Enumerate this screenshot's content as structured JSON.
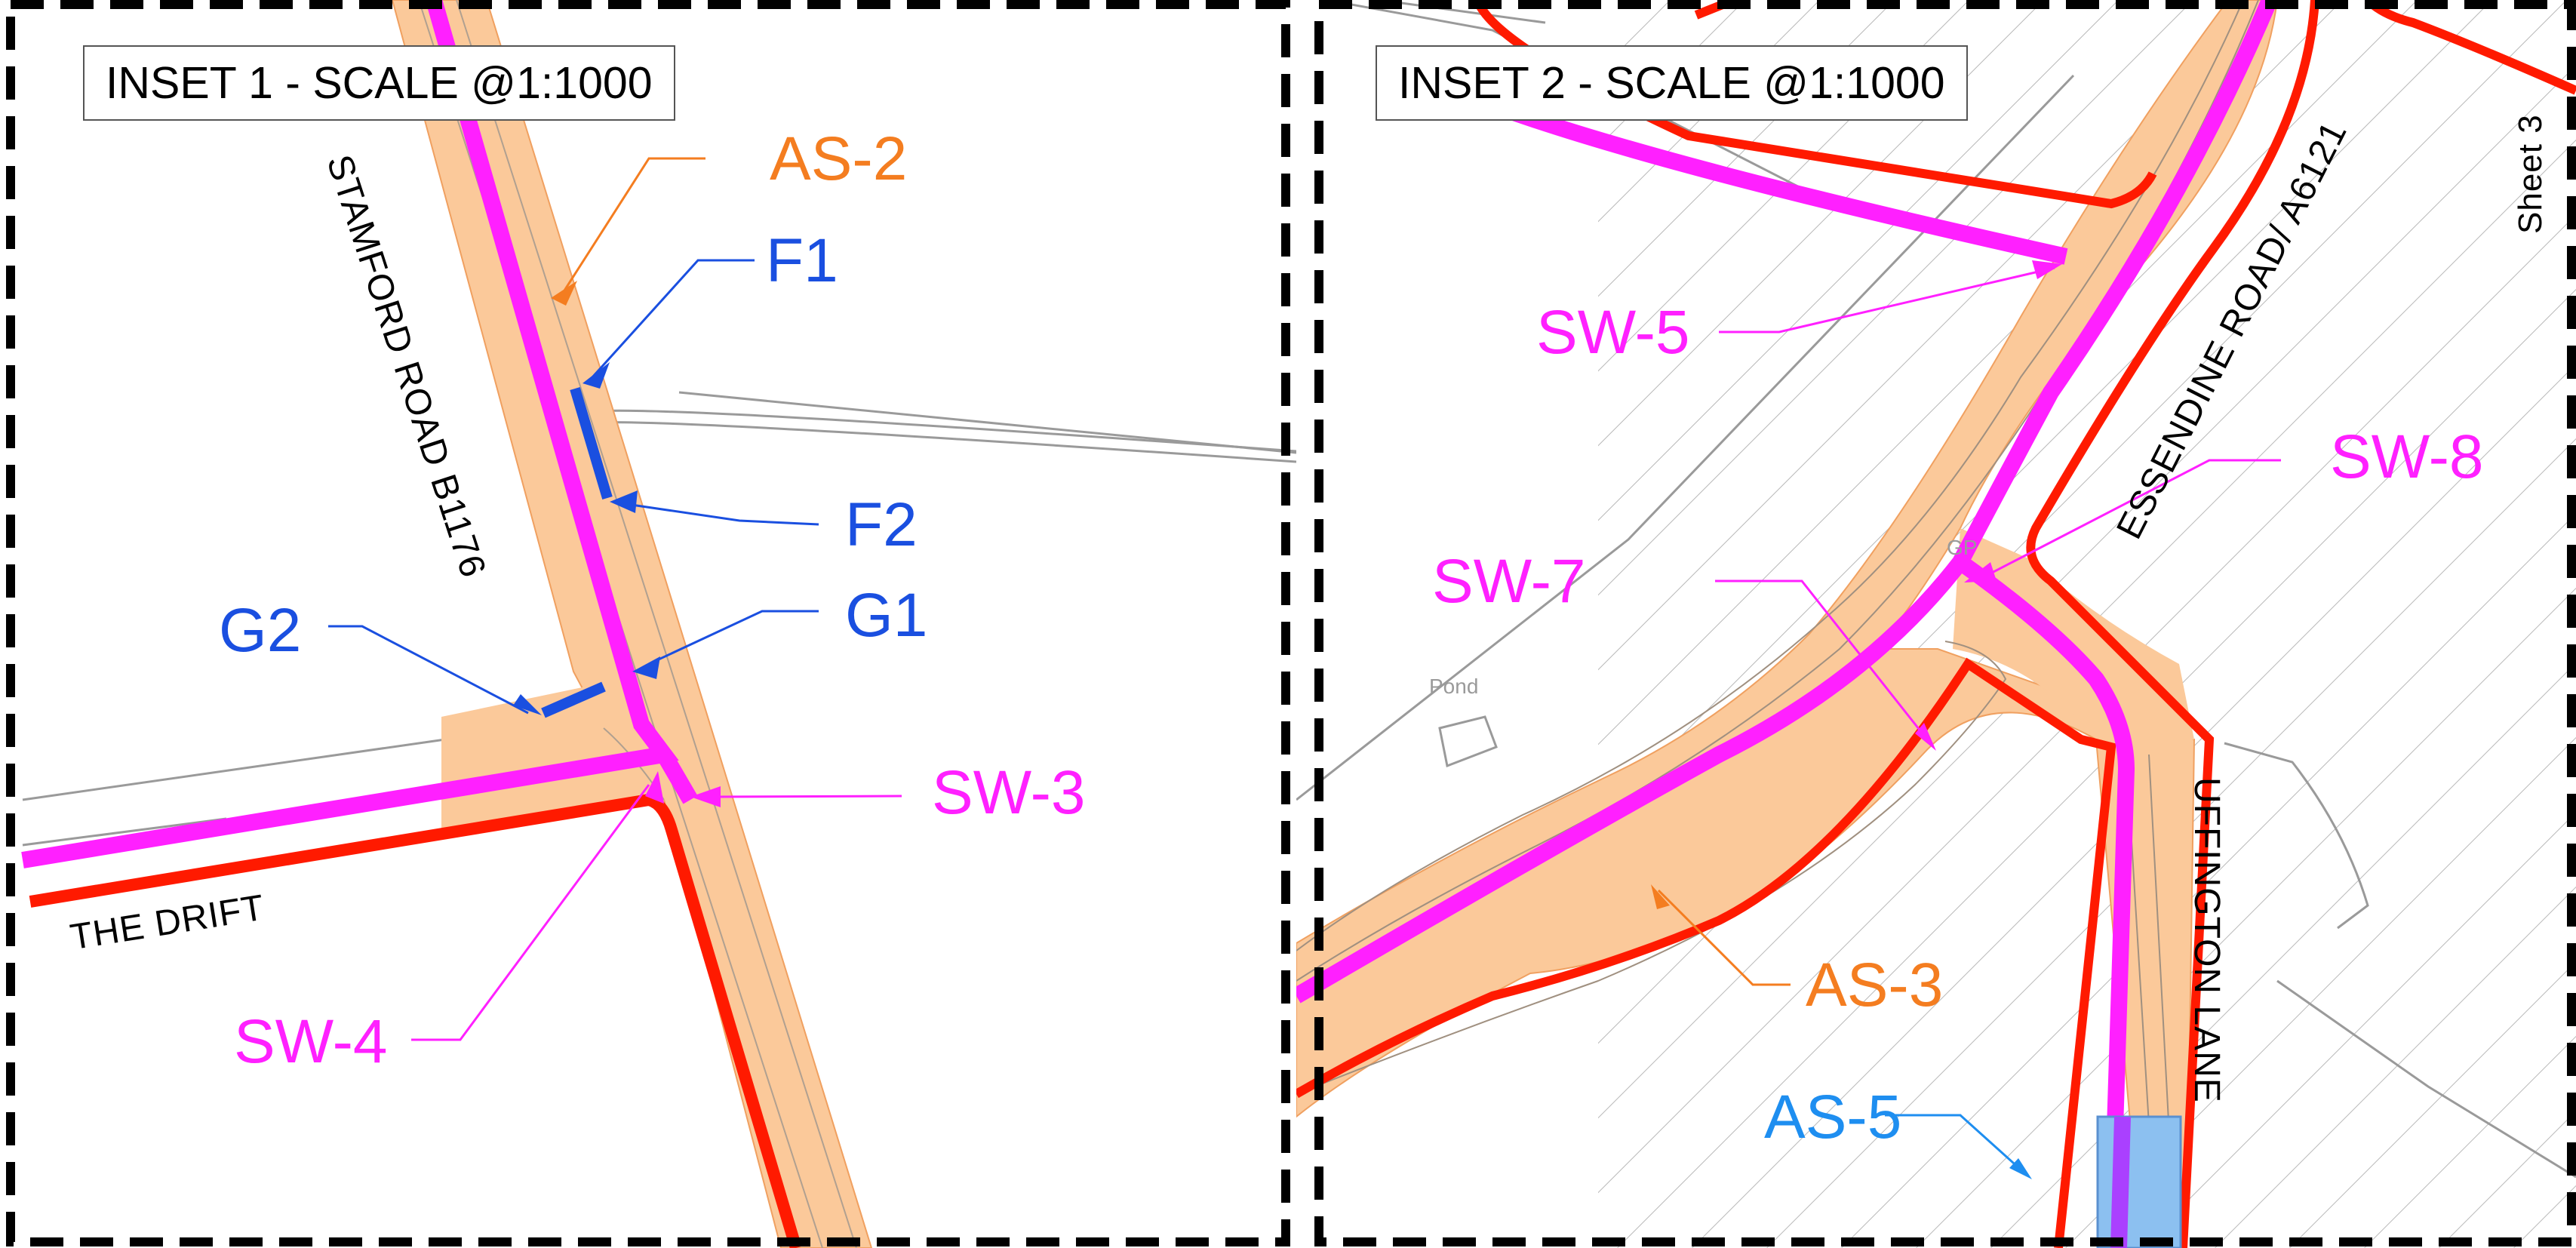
{
  "inset_1": {
    "title": "INSET 1 - SCALE @1:1000",
    "roads": {
      "stamford": "STAMFORD ROAD B1176",
      "drift": "THE DRIFT"
    },
    "labels": {
      "as2": "AS-2",
      "f1": "F1",
      "f2": "F2",
      "g1": "G1",
      "g2": "G2",
      "sw3": "SW-3",
      "sw4": "SW-4"
    }
  },
  "inset_2": {
    "title": "INSET 2 - SCALE @1:1000",
    "roads": {
      "essendine": "ESSENDINE ROAD/ A6121",
      "uffington": "UFFINGTON LANE",
      "sheet": "Sheet 3"
    },
    "features": {
      "gp": "GP",
      "pond": "Pond"
    },
    "labels": {
      "sw5": "SW-5",
      "sw7": "SW-7",
      "sw8": "SW-8",
      "as3": "AS-3",
      "as5": "AS-5"
    }
  },
  "colors": {
    "orange_label": "#f47d20",
    "blue_label": "#1a4fe0",
    "magenta": "#ff20ff",
    "red_boundary": "#ff1a00",
    "road_fill": "#fbc99a",
    "light_blue": "#8cc0f0",
    "sky_label": "#1e8ef0"
  }
}
